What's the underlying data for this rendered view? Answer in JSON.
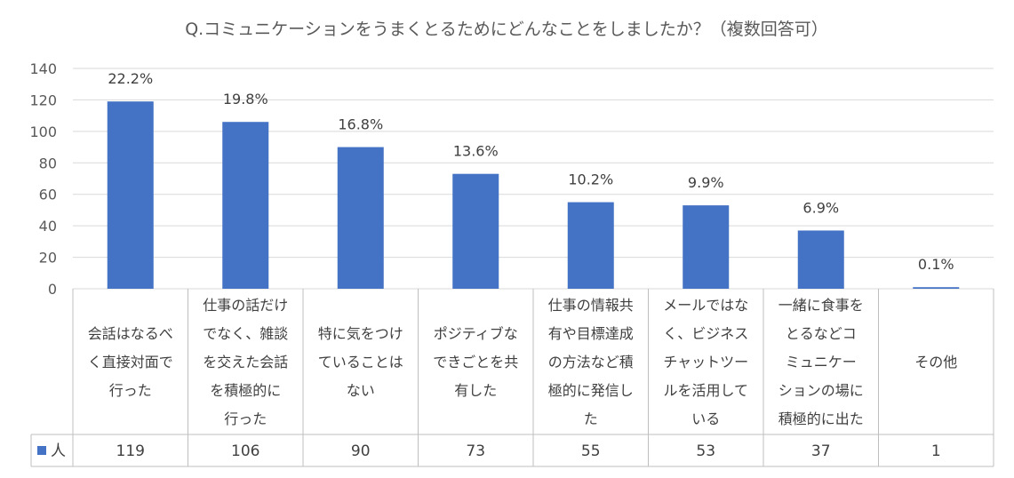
{
  "chart_data": {
    "type": "bar",
    "title": "Q.コミュニケーションをうまくとるためにどんなことをしましたか？（複数回答可）",
    "ylim": [
      0,
      140
    ],
    "yticks": [
      0,
      20,
      40,
      60,
      80,
      100,
      120,
      140
    ],
    "grid": true,
    "bar_color": "#4472c4",
    "categories": [
      [
        "会話はなるべ",
        "く直接対面で",
        "行った"
      ],
      [
        "仕事の話だけ",
        "でなく、雑談",
        "を交えた会話",
        "を積極的に",
        "行った"
      ],
      [
        "特に気をつけ",
        "ていることは",
        "ない"
      ],
      [
        "ポジティブな",
        "できごとを共",
        "有した"
      ],
      [
        "仕事の情報共",
        "有や目標達成",
        "の方法など積",
        "極的に発信し",
        "た"
      ],
      [
        "メールではな",
        "く、ビジネス",
        "チャットツー",
        "ルを活用して",
        "いる"
      ],
      [
        "一緒に食事を",
        "とるなどコ",
        "ミュニケー",
        "ションの場に",
        "積極的に出た"
      ],
      [
        "その他"
      ]
    ],
    "series": [
      {
        "name": "人",
        "values": [
          119,
          106,
          90,
          73,
          55,
          53,
          37,
          1
        ],
        "labels": [
          "22.2%",
          "19.8%",
          "16.8%",
          "13.6%",
          "10.2%",
          "9.9%",
          "6.9%",
          "0.1%"
        ]
      }
    ]
  }
}
